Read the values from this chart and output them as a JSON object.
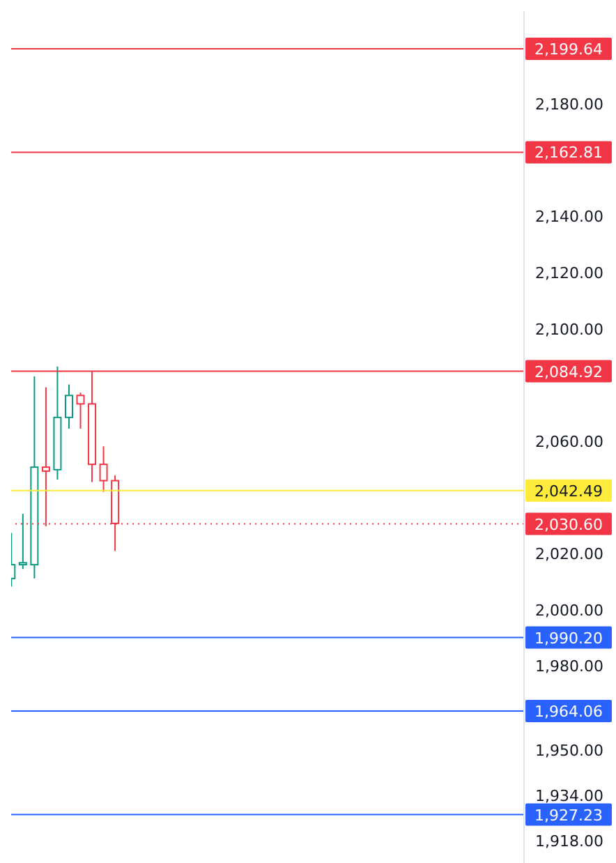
{
  "chart_data": {
    "type": "candlestick",
    "categories": [
      null,
      null,
      null,
      null,
      null,
      null,
      null,
      null,
      null,
      null,
      null,
      null,
      null,
      null,
      null,
      null,
      null,
      null,
      null,
      null,
      null,
      null,
      null,
      null,
      null,
      null,
      null,
      null,
      null,
      null,
      null,
      null,
      null,
      null,
      null,
      null,
      null,
      null,
      null,
      null,
      null,
      null,
      null,
      null,
      null
    ],
    "ohlc": [
      [
        2011.2,
        2027.4,
        2008.3,
        2016.1
      ],
      [
        2016.1,
        2034.2,
        2014.6,
        2016.8
      ],
      [
        2016.1,
        2083.1,
        2011.2,
        2050.8
      ],
      [
        2050.8,
        2079.2,
        2029.8,
        2049.4
      ],
      [
        2049.9,
        2086.6,
        2046.4,
        2068.5
      ],
      [
        2068.5,
        2080.2,
        2064.5,
        2076.3
      ],
      [
        2076.3,
        2077.3,
        2064.5,
        2073.3
      ],
      [
        2073.3,
        2085.1,
        2045.5,
        2051.8
      ],
      [
        2051.8,
        2058.2,
        2042.0,
        2046.0
      ],
      [
        2046.0,
        2047.9,
        2021.0,
        2030.8
      ],
      null,
      null,
      null,
      null,
      null,
      null,
      null,
      null,
      null,
      null,
      null,
      null,
      null,
      null,
      null,
      null,
      null,
      null,
      null,
      null,
      null,
      null,
      null,
      null,
      null,
      null,
      null,
      null,
      null,
      null,
      null,
      null,
      null,
      null,
      null
    ],
    "colors": [
      "#089981",
      "#089981",
      "#089981",
      "#f23645",
      "#089981",
      "#089981",
      "#f23645",
      "#f23645",
      "#f23645",
      "#f23645",
      null,
      null,
      null,
      null,
      null,
      null,
      null,
      null,
      null,
      null,
      null,
      null,
      null,
      null,
      null,
      null,
      null,
      null,
      null,
      null,
      null,
      null,
      null,
      null,
      null,
      null,
      null,
      null,
      null,
      null,
      null,
      null,
      null,
      null,
      null
    ],
    "ylim": [
      1910,
      2213
    ],
    "yticks": [
      {
        "value": 2180,
        "label": "2,180.00"
      },
      {
        "value": 2140,
        "label": "2,140.00"
      },
      {
        "value": 2120,
        "label": "2,120.00"
      },
      {
        "value": 2100,
        "label": "2,100.00"
      },
      {
        "value": 2060,
        "label": "2,060.00"
      },
      {
        "value": 2020,
        "label": "2,020.00"
      },
      {
        "value": 2000,
        "label": "2,000.00"
      },
      {
        "value": 1980,
        "label": "1,980.00"
      },
      {
        "value": 1950,
        "label": "1,950.00"
      },
      {
        "value": 1934,
        "label": "1,934.00"
      },
      {
        "value": 1918,
        "label": "1,918.00"
      }
    ],
    "tick_labels": "y",
    "ref_lines": [
      {
        "axis": "y",
        "value": 2199.64,
        "label": "2,199.64",
        "color": "#f23645"
      },
      {
        "axis": "y",
        "value": 2162.81,
        "label": "2,162.81",
        "color": "#f23645"
      },
      {
        "axis": "y",
        "value": 2084.92,
        "label": "2,084.92",
        "color": "#f23645"
      },
      {
        "axis": "y",
        "value": 2042.49,
        "label": "2,042.49",
        "color": "#ffeb3b"
      },
      {
        "axis": "y",
        "value": 2030.6,
        "label": "2,030.60",
        "color": "#f23645",
        "line_style": "dotted"
      },
      {
        "axis": "y",
        "value": 1990.2,
        "label": "1,990.20",
        "color": "#2962ff"
      },
      {
        "axis": "y",
        "value": 1964.06,
        "label": "1,964.06",
        "color": "#2962ff"
      },
      {
        "axis": "y",
        "value": 1927.23,
        "label": "1,927.23",
        "color": "#2962ff"
      }
    ]
  }
}
